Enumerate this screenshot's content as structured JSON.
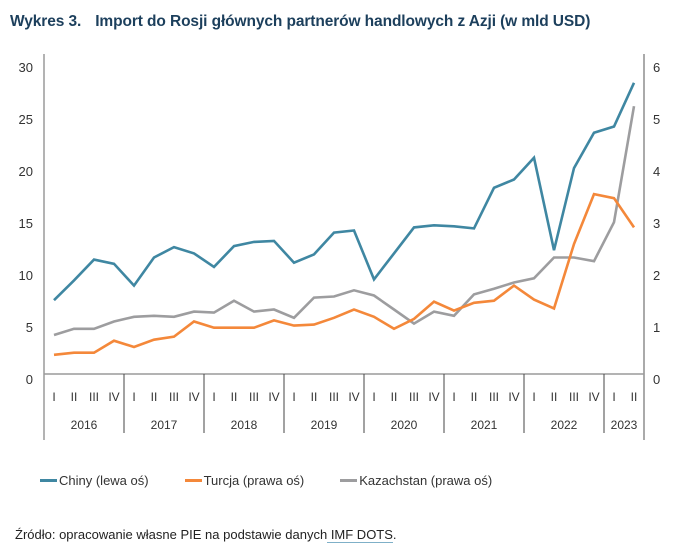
{
  "title": {
    "number": "Wykres 3.",
    "text": "Import do Rosji głównych partnerów handlowych z Azji (w mld USD)"
  },
  "chart_data": {
    "type": "line",
    "title": "Import do Rosji głównych partnerów handlowych z Azji (w mld USD)",
    "quarters": [
      "I",
      "II",
      "III",
      "IV",
      "I",
      "II",
      "III",
      "IV",
      "I",
      "II",
      "III",
      "IV",
      "I",
      "II",
      "III",
      "IV",
      "I",
      "II",
      "III",
      "IV",
      "I",
      "II",
      "III",
      "IV",
      "I",
      "II",
      "III",
      "IV",
      "I",
      "II"
    ],
    "years": [
      {
        "label": "2016",
        "quarters": 4
      },
      {
        "label": "2017",
        "quarters": 4
      },
      {
        "label": "2018",
        "quarters": 4
      },
      {
        "label": "2019",
        "quarters": 4
      },
      {
        "label": "2020",
        "quarters": 4
      },
      {
        "label": "2021",
        "quarters": 4
      },
      {
        "label": "2022",
        "quarters": 4
      },
      {
        "label": "2023",
        "quarters": 2
      }
    ],
    "left_axis": {
      "label": "lewa oś",
      "ylim": [
        0,
        30
      ],
      "ticks": [
        0,
        5,
        10,
        15,
        20,
        25,
        30
      ]
    },
    "right_axis": {
      "label": "prawa oś",
      "ylim": [
        0,
        6
      ],
      "ticks": [
        0,
        1,
        2,
        3,
        4,
        5,
        6
      ]
    },
    "grid": false,
    "legend_position": "bottom",
    "series": [
      {
        "name": "Chiny (lewa oś)",
        "axis": "left",
        "color": "#3f87a2",
        "values": [
          7.1,
          9.0,
          11.0,
          10.6,
          8.5,
          11.2,
          12.2,
          11.6,
          10.3,
          12.3,
          12.7,
          12.8,
          10.7,
          11.5,
          13.6,
          13.8,
          9.1,
          11.6,
          14.1,
          14.3,
          14.2,
          14.0,
          17.9,
          18.7,
          20.8,
          11.9,
          19.8,
          23.2,
          23.8,
          28.0
        ]
      },
      {
        "name": "Turcja (prawa oś)",
        "axis": "right",
        "color": "#f4883a",
        "values": [
          0.37,
          0.41,
          0.41,
          0.64,
          0.52,
          0.66,
          0.72,
          1.01,
          0.89,
          0.89,
          0.89,
          1.03,
          0.93,
          0.95,
          1.08,
          1.24,
          1.1,
          0.87,
          1.06,
          1.39,
          1.22,
          1.37,
          1.41,
          1.7,
          1.43,
          1.26,
          2.5,
          3.46,
          3.38,
          2.82
        ]
      },
      {
        "name": "Kazachstan (prawa oś)",
        "axis": "right",
        "color": "#9d9d9f",
        "values": [
          0.75,
          0.87,
          0.87,
          1.01,
          1.1,
          1.12,
          1.1,
          1.2,
          1.18,
          1.41,
          1.2,
          1.24,
          1.08,
          1.47,
          1.49,
          1.61,
          1.51,
          1.24,
          0.97,
          1.2,
          1.12,
          1.53,
          1.64,
          1.76,
          1.84,
          2.24,
          2.24,
          2.17,
          2.92,
          5.15
        ]
      }
    ]
  },
  "source": {
    "prefix": "Źródło: opracowanie własne PIE na podstawie danych",
    "link": "IMF DOTS",
    "suffix": "."
  }
}
